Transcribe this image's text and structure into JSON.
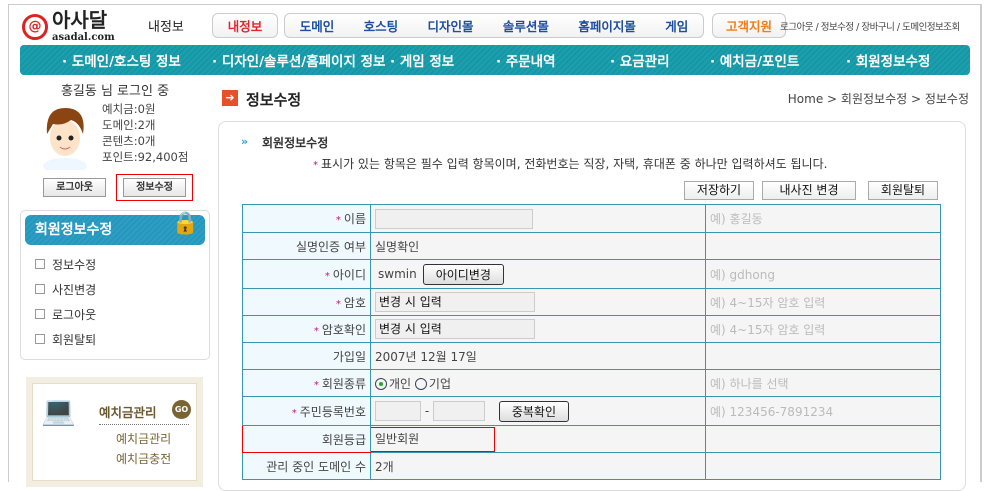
{
  "header": {
    "logo_text": "아사달",
    "logo_domain": "asadal.com",
    "section_title": "내정보",
    "tabs": [
      {
        "label": "내정보",
        "color": "#e0262b"
      },
      {
        "label": "도메인"
      },
      {
        "label": "호스팅"
      },
      {
        "label": "디자인몰"
      },
      {
        "label": "솔루션몰"
      },
      {
        "label": "홈페이지몰"
      },
      {
        "label": "게임"
      },
      {
        "label": "고객지원",
        "color": "#f07d1a"
      }
    ],
    "top_links": "로그아웃 / 정보수정 / 장바구니 / 도메인정보조회"
  },
  "nav": [
    "· 도메인/호스팅 정보",
    "· 디자인/솔루션/홈페이지 정보",
    "· 게임 정보",
    "· 주문내역",
    "· 요금관리",
    "· 예치금/포인트",
    "· 회원정보수정"
  ],
  "user": {
    "greeting": "홍길동 님 로그인 중",
    "deposit": "예치금:0원",
    "domains": "도메인:2개",
    "contents": "콘텐츠:0개",
    "points": "포인트:92,400점",
    "logout": "로그아웃",
    "edit": "정보수정"
  },
  "sidemenu": {
    "title": "회원정보수정",
    "items": [
      "정보수정",
      "사진변경",
      "로그아웃",
      "회원탈퇴"
    ]
  },
  "deposit_box": {
    "title": "예치금관리",
    "go": "GO",
    "links": [
      "예치금관리",
      "예치금충전"
    ]
  },
  "page": {
    "title": "정보수정",
    "breadcrumb": "Home > 회원정보수정 > 정보수정",
    "section": "회원정보수정",
    "notice": "표시가 있는 항목은 필수 입력 항목이며, 전화번호는 직장, 자택, 휴대폰 중 하나만 입력하셔도 됩니다.",
    "buttons": {
      "save": "저장하기",
      "photo": "내사진 변경",
      "withdraw": "회원탈퇴"
    }
  },
  "form": {
    "name": {
      "label": "이름",
      "hint": "예) 홍길동"
    },
    "realname": {
      "label": "실명인증 여부",
      "value": "실명확인"
    },
    "id": {
      "label": "아이디",
      "value": "swmin",
      "button": "아이디변경",
      "hint": "예) gdhong"
    },
    "pw": {
      "label": "암호",
      "value": "변경 시 입력",
      "hint": "예) 4~15자 암호 입력"
    },
    "pw2": {
      "label": "암호확인",
      "value": "변경 시 입력",
      "hint": "예) 4~15자 암호 입력"
    },
    "joined": {
      "label": "가입일",
      "value": "2007년 12월 17일"
    },
    "type": {
      "label": "회원종류",
      "opt1": "개인",
      "opt2": "기업",
      "selected": "개인",
      "hint": "예) 하나를 선택"
    },
    "ssn": {
      "label": "주민등록번호",
      "dash": "-",
      "button": "중복확인",
      "hint": "예) 123456-7891234"
    },
    "grade": {
      "label": "회원등급",
      "value": "일반회원"
    },
    "domcount": {
      "label": "관리 중인 도메인 수",
      "value": "2개"
    }
  }
}
